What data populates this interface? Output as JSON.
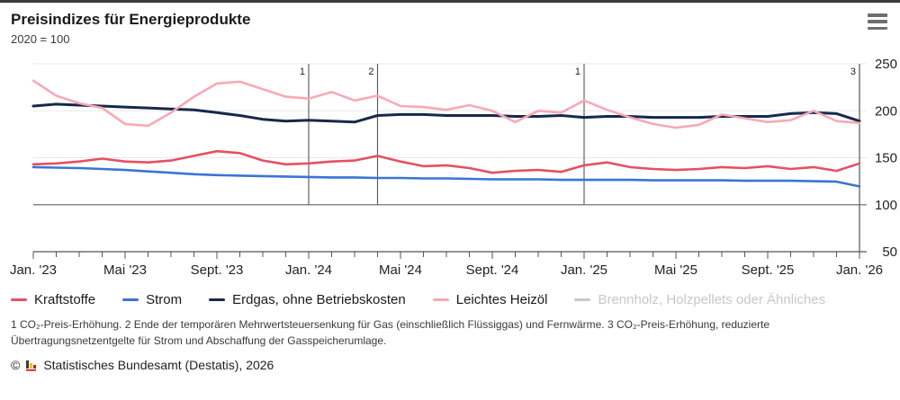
{
  "header": {
    "title": "Preisindizes für Energieprodukte",
    "subtitle": "2020 = 100",
    "menu_icon": "hamburger-menu-icon"
  },
  "chart_data": {
    "type": "line",
    "title": "Preisindizes für Energieprodukte",
    "subtitle": "2020 = 100",
    "x_unit": "month",
    "months_total": 36,
    "x_tick_months": [
      0,
      4,
      8,
      12,
      16,
      20,
      24,
      28,
      32,
      36
    ],
    "x_tick_labels": [
      "Jan. '23",
      "Mai '23",
      "Sept. '23",
      "Jan. '24",
      "Mai '24",
      "Sept. '24",
      "Jan. '25",
      "Mai '25",
      "Sept. '25",
      "Jan. '26"
    ],
    "ylim": [
      50,
      250
    ],
    "y_ticks": [
      50,
      100,
      150,
      200,
      250
    ],
    "baseline_value": 100,
    "grid_on": true,
    "legend_position": "bottom",
    "colors": {
      "grid": "#e8e8e8",
      "baseline": "#8a8a8a",
      "axis": "#555555",
      "tick_label": "#222222",
      "event_line": "#555555"
    },
    "event_lines": [
      {
        "month": 12,
        "label": "1"
      },
      {
        "month": 15,
        "label": "2"
      },
      {
        "month": 24,
        "label": "1"
      },
      {
        "month": 36,
        "label": "3"
      }
    ],
    "series": [
      {
        "name": "Kraftstoffe",
        "color": "#e65062",
        "width": 2.6,
        "values": [
          143,
          144,
          146,
          149,
          146,
          145,
          147,
          152,
          157,
          155,
          147,
          143,
          144,
          146,
          147,
          152,
          146,
          141,
          142,
          139,
          134,
          136,
          137,
          135,
          142,
          145,
          140,
          138,
          137,
          138,
          140,
          139,
          141,
          138,
          140,
          136,
          144
        ]
      },
      {
        "name": "Strom",
        "color": "#3a74d4",
        "width": 2.6,
        "values": [
          140,
          139.5,
          139,
          138,
          137,
          135.5,
          134,
          132.5,
          131.5,
          131,
          130.5,
          130,
          129.5,
          129,
          129,
          128.5,
          128.5,
          128,
          128,
          127.5,
          127,
          127,
          127,
          126.5,
          126.5,
          126.5,
          126.5,
          126,
          126,
          126,
          126,
          125.5,
          125.5,
          125.5,
          125,
          124.5,
          119.5
        ]
      },
      {
        "name": "Erdgas, ohne Betriebskosten",
        "color": "#16294d",
        "width": 3,
        "values": [
          205,
          207,
          206,
          205,
          204,
          203,
          202,
          201,
          198,
          195,
          191,
          189,
          190,
          189,
          188,
          195,
          196,
          196,
          195,
          195,
          195,
          194,
          194,
          195,
          193,
          194,
          194,
          193,
          193,
          193,
          194,
          194,
          194,
          197,
          198,
          197,
          189
        ]
      },
      {
        "name": "Leichtes Heizöl",
        "color": "#f7a9b4",
        "width": 2.6,
        "values": [
          232,
          216,
          208,
          203,
          186,
          184,
          198,
          215,
          229,
          231,
          223,
          215,
          213,
          220,
          211,
          216,
          205,
          204,
          201,
          206,
          200,
          188,
          200,
          198,
          211,
          201,
          193,
          186,
          182,
          185,
          196,
          192,
          188,
          190,
          200,
          189,
          187
        ]
      }
    ],
    "hidden_series": [
      {
        "name": "Brennholz, Holzpellets oder Ähnliches",
        "color": "#c8c8c8"
      }
    ]
  },
  "legend": {
    "items": [
      {
        "label": "Kraftstoffe",
        "color": "#e65062",
        "active": true
      },
      {
        "label": "Strom",
        "color": "#3a74d4",
        "active": true
      },
      {
        "label": "Erdgas, ohne Betriebskosten",
        "color": "#16294d",
        "active": true
      },
      {
        "label": "Leichtes Heizöl",
        "color": "#f7a9b4",
        "active": true
      },
      {
        "label": "Brennholz, Holzpellets oder Ähnliches",
        "color": "#c8c8c8",
        "active": false
      }
    ]
  },
  "footnotes": {
    "text": "1 CO₂-Preis-Erhöhung. 2 Ende der temporären Mehrwertsteuersenkung für Gas (einschließlich Flüssiggas) und Fernwärme. 3 CO₂-Preis-Erhöhung, reduzierte Übertragungsnetzentgelte für Strom und Abschaffung der Gasspeicherumlage."
  },
  "source": {
    "prefix": "©",
    "logo": "destatis-bar-chart-logo",
    "text": "Statistisches Bundesamt (Destatis), 2026"
  }
}
